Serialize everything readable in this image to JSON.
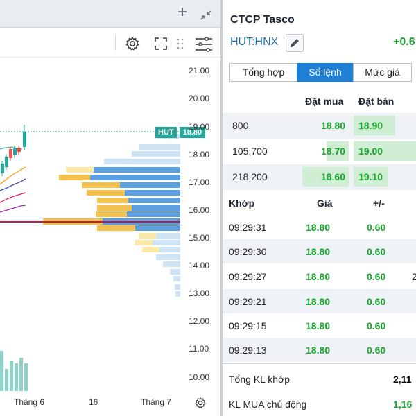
{
  "chart": {
    "ticker_tag": "HUT",
    "last_price_tag": "18.80",
    "y_axis_labels": [
      "21.00",
      "20.00",
      "19.00",
      "18.00",
      "17.00",
      "16.00",
      "15.00",
      "14.00",
      "13.00",
      "12.00",
      "11.00",
      "10.00"
    ],
    "x_axis_labels": [
      "Tháng 6",
      "16",
      "Tháng 7"
    ],
    "colors": {
      "up": "#26a69a",
      "down": "#ef5350",
      "last_price_line": "#26a69a",
      "poc_line": "#c2185b",
      "volume_profile_up": "#4a90d9",
      "volume_profile_down": "#f2c14e"
    }
  },
  "instrument": {
    "company_name": "CTCP Tasco",
    "ticker": "HUT:HNX",
    "change": "+0.6",
    "change_color": "#1aa52e"
  },
  "tabs": [
    {
      "label": "Tổng hợp",
      "active": false
    },
    {
      "label": "Sổ lệnh",
      "active": true
    },
    {
      "label": "Mức giá",
      "active": false
    }
  ],
  "order_book": {
    "headers": {
      "bid": "Đặt mua",
      "ask": "Đặt bán"
    },
    "rows": [
      {
        "volume": "800",
        "bid": "18.80",
        "ask": "18.90"
      },
      {
        "volume": "105,700",
        "bid": "18.70",
        "ask": "19.00"
      },
      {
        "volume": "218,200",
        "bid": "18.60",
        "ask": "19.10"
      }
    ]
  },
  "trades": {
    "headers": {
      "time": "Khớp",
      "price": "Giá",
      "change": "+/-"
    },
    "rows": [
      {
        "time": "09:29:31",
        "price": "18.80",
        "change": "0.60",
        "volume": ""
      },
      {
        "time": "09:29:30",
        "price": "18.80",
        "change": "0.60",
        "volume": ""
      },
      {
        "time": "09:29:27",
        "price": "18.80",
        "change": "0.60",
        "volume": "2"
      },
      {
        "time": "09:29:21",
        "price": "18.80",
        "change": "0.60",
        "volume": ""
      },
      {
        "time": "09:29:15",
        "price": "18.80",
        "change": "0.60",
        "volume": ""
      },
      {
        "time": "09:29:13",
        "price": "18.80",
        "change": "0.60",
        "volume": ""
      }
    ]
  },
  "summary": [
    {
      "label": "Tổng KL khớp",
      "value": "2,11",
      "color": "#111111"
    },
    {
      "label": "KL MUA chủ động",
      "value": "1,16",
      "color": "#1aa52e"
    }
  ]
}
